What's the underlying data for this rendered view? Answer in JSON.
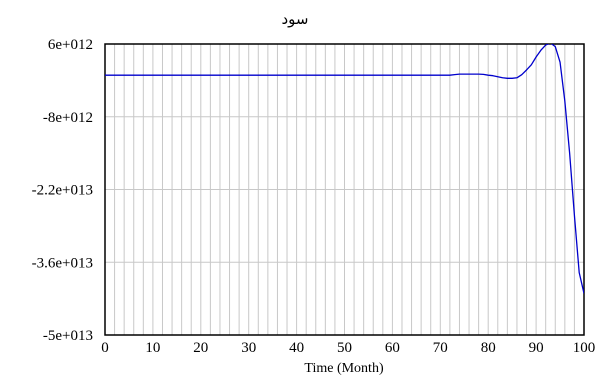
{
  "chart_data": {
    "type": "line",
    "title": "سود",
    "xlabel": "Time (Month)",
    "ylabel": "",
    "xlim": [
      0,
      100
    ],
    "ylim": [
      -50000000000000,
      6000000000000
    ],
    "grid": true,
    "x_ticks": [
      0,
      10,
      20,
      30,
      40,
      50,
      60,
      70,
      80,
      90,
      100
    ],
    "x_tick_labels": [
      "0",
      "10",
      "20",
      "30",
      "40",
      "50",
      "60",
      "70",
      "80",
      "90",
      "100"
    ],
    "y_ticks": [
      6000000000000,
      -8000000000000,
      -22000000000000,
      -36000000000000,
      -50000000000000
    ],
    "y_tick_labels": [
      "6e+012",
      "-8e+012",
      "-2.2e+013",
      "-3.6e+013",
      "-5e+013"
    ],
    "series": [
      {
        "color": "#0000cc",
        "x": [
          0,
          10,
          20,
          30,
          40,
          50,
          60,
          70,
          72,
          73,
          74,
          76,
          78,
          79,
          80,
          81,
          82,
          83,
          84,
          85,
          86,
          87,
          88,
          89,
          90,
          91,
          92,
          93,
          94,
          95,
          96,
          97,
          98,
          99,
          100
        ],
        "y": [
          0,
          0,
          0,
          0,
          0,
          0,
          0,
          0,
          0,
          100000000000,
          200000000000,
          200000000000,
          200000000000,
          150000000000,
          0,
          -100000000000,
          -300000000000,
          -500000000000,
          -600000000000,
          -600000000000,
          -500000000000,
          100000000000,
          1000000000000,
          2000000000000,
          3500000000000,
          4800000000000,
          5800000000000,
          6200000000000,
          5500000000000,
          2500000000000,
          -5000000000000,
          -15000000000000,
          -27000000000000,
          -38000000000000,
          -42000000000000
        ]
      }
    ]
  }
}
